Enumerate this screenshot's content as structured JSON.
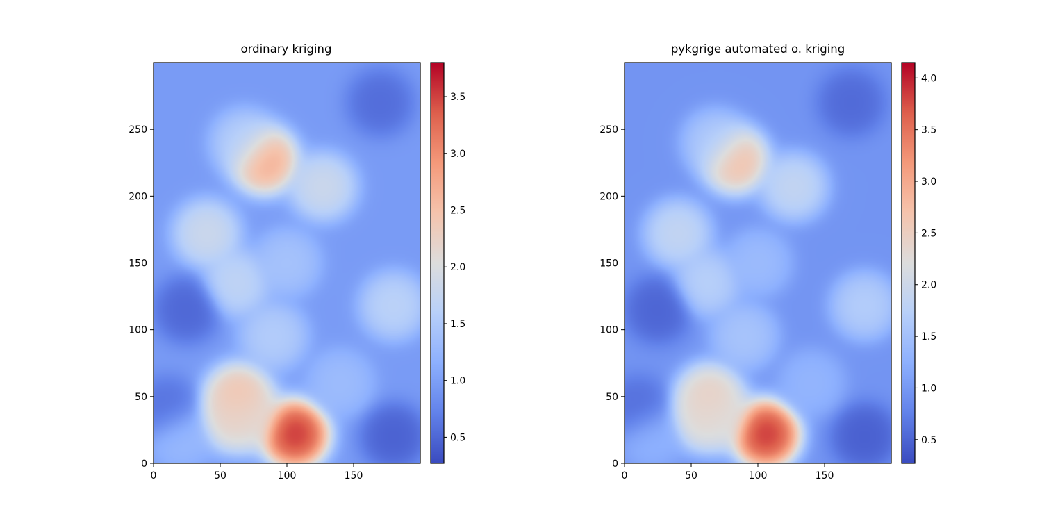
{
  "figure": {
    "background": "#ffffff"
  },
  "chart_data": [
    {
      "type": "heatmap",
      "title": "ordinary kriging",
      "xlabel": "",
      "ylabel": "",
      "xlim": [
        0,
        200
      ],
      "ylim": [
        0,
        300
      ],
      "xticks": [
        "0",
        "50",
        "100",
        "150"
      ],
      "yticks": [
        "0",
        "50",
        "100",
        "150",
        "200",
        "250"
      ],
      "colormap": "coolwarm",
      "grid": false,
      "colorbar": {
        "min": 0.27,
        "max": 3.8,
        "ticks": [
          "0.5",
          "1.0",
          "1.5",
          "2.0",
          "2.5",
          "3.0",
          "3.5"
        ]
      },
      "background_level": 0.95,
      "features": [
        {
          "x": 106,
          "y": 22,
          "value": 3.8
        },
        {
          "x": 64,
          "y": 50,
          "value": 2.6
        },
        {
          "x": 58,
          "y": 35,
          "value": 2.3
        },
        {
          "x": 70,
          "y": 35,
          "value": 2.2
        },
        {
          "x": 83,
          "y": 227,
          "value": 2.9
        },
        {
          "x": 40,
          "y": 172,
          "value": 1.9
        },
        {
          "x": 127,
          "y": 207,
          "value": 1.9
        },
        {
          "x": 62,
          "y": 135,
          "value": 1.75
        },
        {
          "x": 180,
          "y": 118,
          "value": 1.7
        },
        {
          "x": 90,
          "y": 95,
          "value": 1.6
        },
        {
          "x": 68,
          "y": 240,
          "value": 1.6
        },
        {
          "x": 140,
          "y": 60,
          "value": 1.35
        },
        {
          "x": 20,
          "y": 20,
          "value": 1.3
        },
        {
          "x": 100,
          "y": 150,
          "value": 1.45
        },
        {
          "x": 25,
          "y": 115,
          "value": 0.45
        },
        {
          "x": 180,
          "y": 20,
          "value": 0.4
        },
        {
          "x": 170,
          "y": 270,
          "value": 0.5
        },
        {
          "x": 10,
          "y": 40,
          "value": 0.55
        }
      ]
    },
    {
      "type": "heatmap",
      "title": "pykgrige automated o. kriging",
      "xlabel": "",
      "ylabel": "",
      "xlim": [
        0,
        200
      ],
      "ylim": [
        0,
        300
      ],
      "xticks": [
        "0",
        "50",
        "100",
        "150"
      ],
      "yticks": [
        "0",
        "50",
        "100",
        "150",
        "200",
        "250"
      ],
      "colormap": "coolwarm",
      "grid": false,
      "colorbar": {
        "min": 0.27,
        "max": 4.15,
        "ticks": [
          "0.5",
          "1.0",
          "1.5",
          "2.0",
          "2.5",
          "3.0",
          "3.5",
          "4.0"
        ]
      },
      "background_level": 0.95,
      "features": [
        {
          "x": 106,
          "y": 22,
          "value": 4.15
        },
        {
          "x": 64,
          "y": 50,
          "value": 2.6
        },
        {
          "x": 58,
          "y": 35,
          "value": 2.4
        },
        {
          "x": 70,
          "y": 35,
          "value": 2.3
        },
        {
          "x": 83,
          "y": 227,
          "value": 2.9
        },
        {
          "x": 40,
          "y": 172,
          "value": 1.95
        },
        {
          "x": 127,
          "y": 207,
          "value": 1.95
        },
        {
          "x": 62,
          "y": 135,
          "value": 1.8
        },
        {
          "x": 180,
          "y": 118,
          "value": 1.75
        },
        {
          "x": 90,
          "y": 95,
          "value": 1.6
        },
        {
          "x": 68,
          "y": 240,
          "value": 1.65
        },
        {
          "x": 140,
          "y": 60,
          "value": 1.35
        },
        {
          "x": 20,
          "y": 20,
          "value": 1.3
        },
        {
          "x": 100,
          "y": 150,
          "value": 1.45
        },
        {
          "x": 25,
          "y": 115,
          "value": 0.45
        },
        {
          "x": 180,
          "y": 20,
          "value": 0.4
        },
        {
          "x": 170,
          "y": 270,
          "value": 0.5
        },
        {
          "x": 10,
          "y": 40,
          "value": 0.55
        }
      ]
    }
  ]
}
